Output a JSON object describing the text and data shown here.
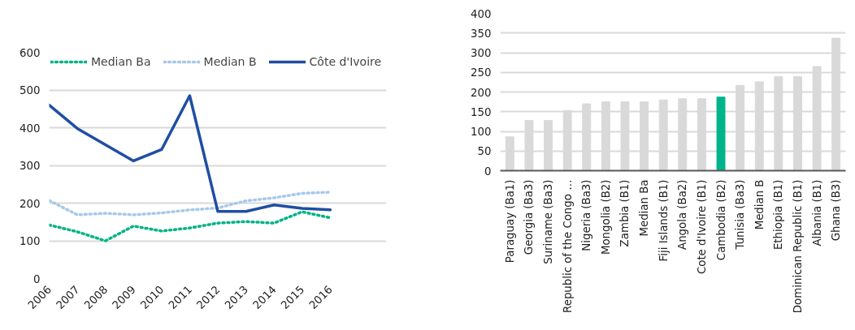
{
  "chart_data": [
    {
      "type": "line",
      "x": [
        2006,
        2007,
        2008,
        2009,
        2010,
        2011,
        2012,
        2013,
        2014,
        2015,
        2016
      ],
      "xlim": [
        2006,
        2018
      ],
      "xticks": [
        2006,
        2007,
        2008,
        2009,
        2010,
        2011,
        2012,
        2013,
        2014,
        2015,
        2016
      ],
      "ylim": [
        0,
        600
      ],
      "yticks": [
        0,
        100,
        200,
        300,
        400,
        500,
        600
      ],
      "grid": "y",
      "legend": "top",
      "series": [
        {
          "name": "Median Ba",
          "color": "#00b386",
          "line_style": "dotted",
          "values": [
            142,
            124,
            100,
            139,
            126,
            134,
            147,
            151,
            147,
            177,
            161
          ]
        },
        {
          "name": "Median B",
          "color": "#a7c8ea",
          "line_style": "dotted",
          "values": [
            207,
            169,
            173,
            169,
            174,
            182,
            187,
            206,
            214,
            226,
            229
          ]
        },
        {
          "name": "Côte d'Ivoire",
          "color": "#1f4ea3",
          "line_style": "solid",
          "values": [
            460,
            398,
            355,
            312,
            342,
            485,
            178,
            178,
            195,
            186,
            182
          ]
        }
      ]
    },
    {
      "type": "bar",
      "categories": [
        "Paraguay (Ba1)",
        "Georgia (Ba3)",
        "Suriname (Ba3)",
        "Republic of the Congo …",
        "Nigeria (Ba3)",
        "Mongolia (B2)",
        "Zambia (B1)",
        "Median Ba",
        "Fiji Islands (B1)",
        "Angola (Ba2)",
        "Cote d'Ivoire (B1)",
        "Cambodia (B2)",
        "Tunisia (Ba3)",
        "Median B",
        "Ethiopia (B1)",
        "Dominican Republic (B1)",
        "Albania (B1)",
        "Ghana (B3)"
      ],
      "values": [
        86,
        128,
        128,
        153,
        170,
        175,
        175,
        175,
        180,
        183,
        183,
        187,
        217,
        226,
        239,
        239,
        265,
        337
      ],
      "colors": [
        "#d9d9d9",
        "#d9d9d9",
        "#d9d9d9",
        "#d9d9d9",
        "#d9d9d9",
        "#d9d9d9",
        "#d9d9d9",
        "#d9d9d9",
        "#d9d9d9",
        "#d9d9d9",
        "#d9d9d9",
        "#00b38a",
        "#d9d9d9",
        "#d9d9d9",
        "#d9d9d9",
        "#d9d9d9",
        "#d9d9d9",
        "#d9d9d9"
      ],
      "ylim": [
        0,
        400
      ],
      "yticks": [
        0,
        50,
        100,
        150,
        200,
        250,
        300,
        350,
        400
      ],
      "grid": "y"
    }
  ]
}
